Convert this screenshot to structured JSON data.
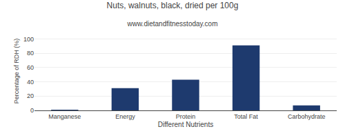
{
  "chart_data": {
    "type": "bar",
    "title": "Nuts, walnuts, black, dried per 100g",
    "subtitle": "www.dietandfitnesstoday.com",
    "xlabel": "Different Nutrients",
    "ylabel": "Percentage of RDH (%)",
    "categories": [
      "Manganese",
      "Energy",
      "Protein",
      "Total Fat",
      "Carbohydrate"
    ],
    "values": [
      0.5,
      31,
      43,
      91,
      7
    ],
    "color": "#1e3a6e",
    "ylim": [
      0,
      110
    ],
    "yticks": [
      0,
      20,
      40,
      60,
      80,
      100
    ],
    "grid": true
  }
}
